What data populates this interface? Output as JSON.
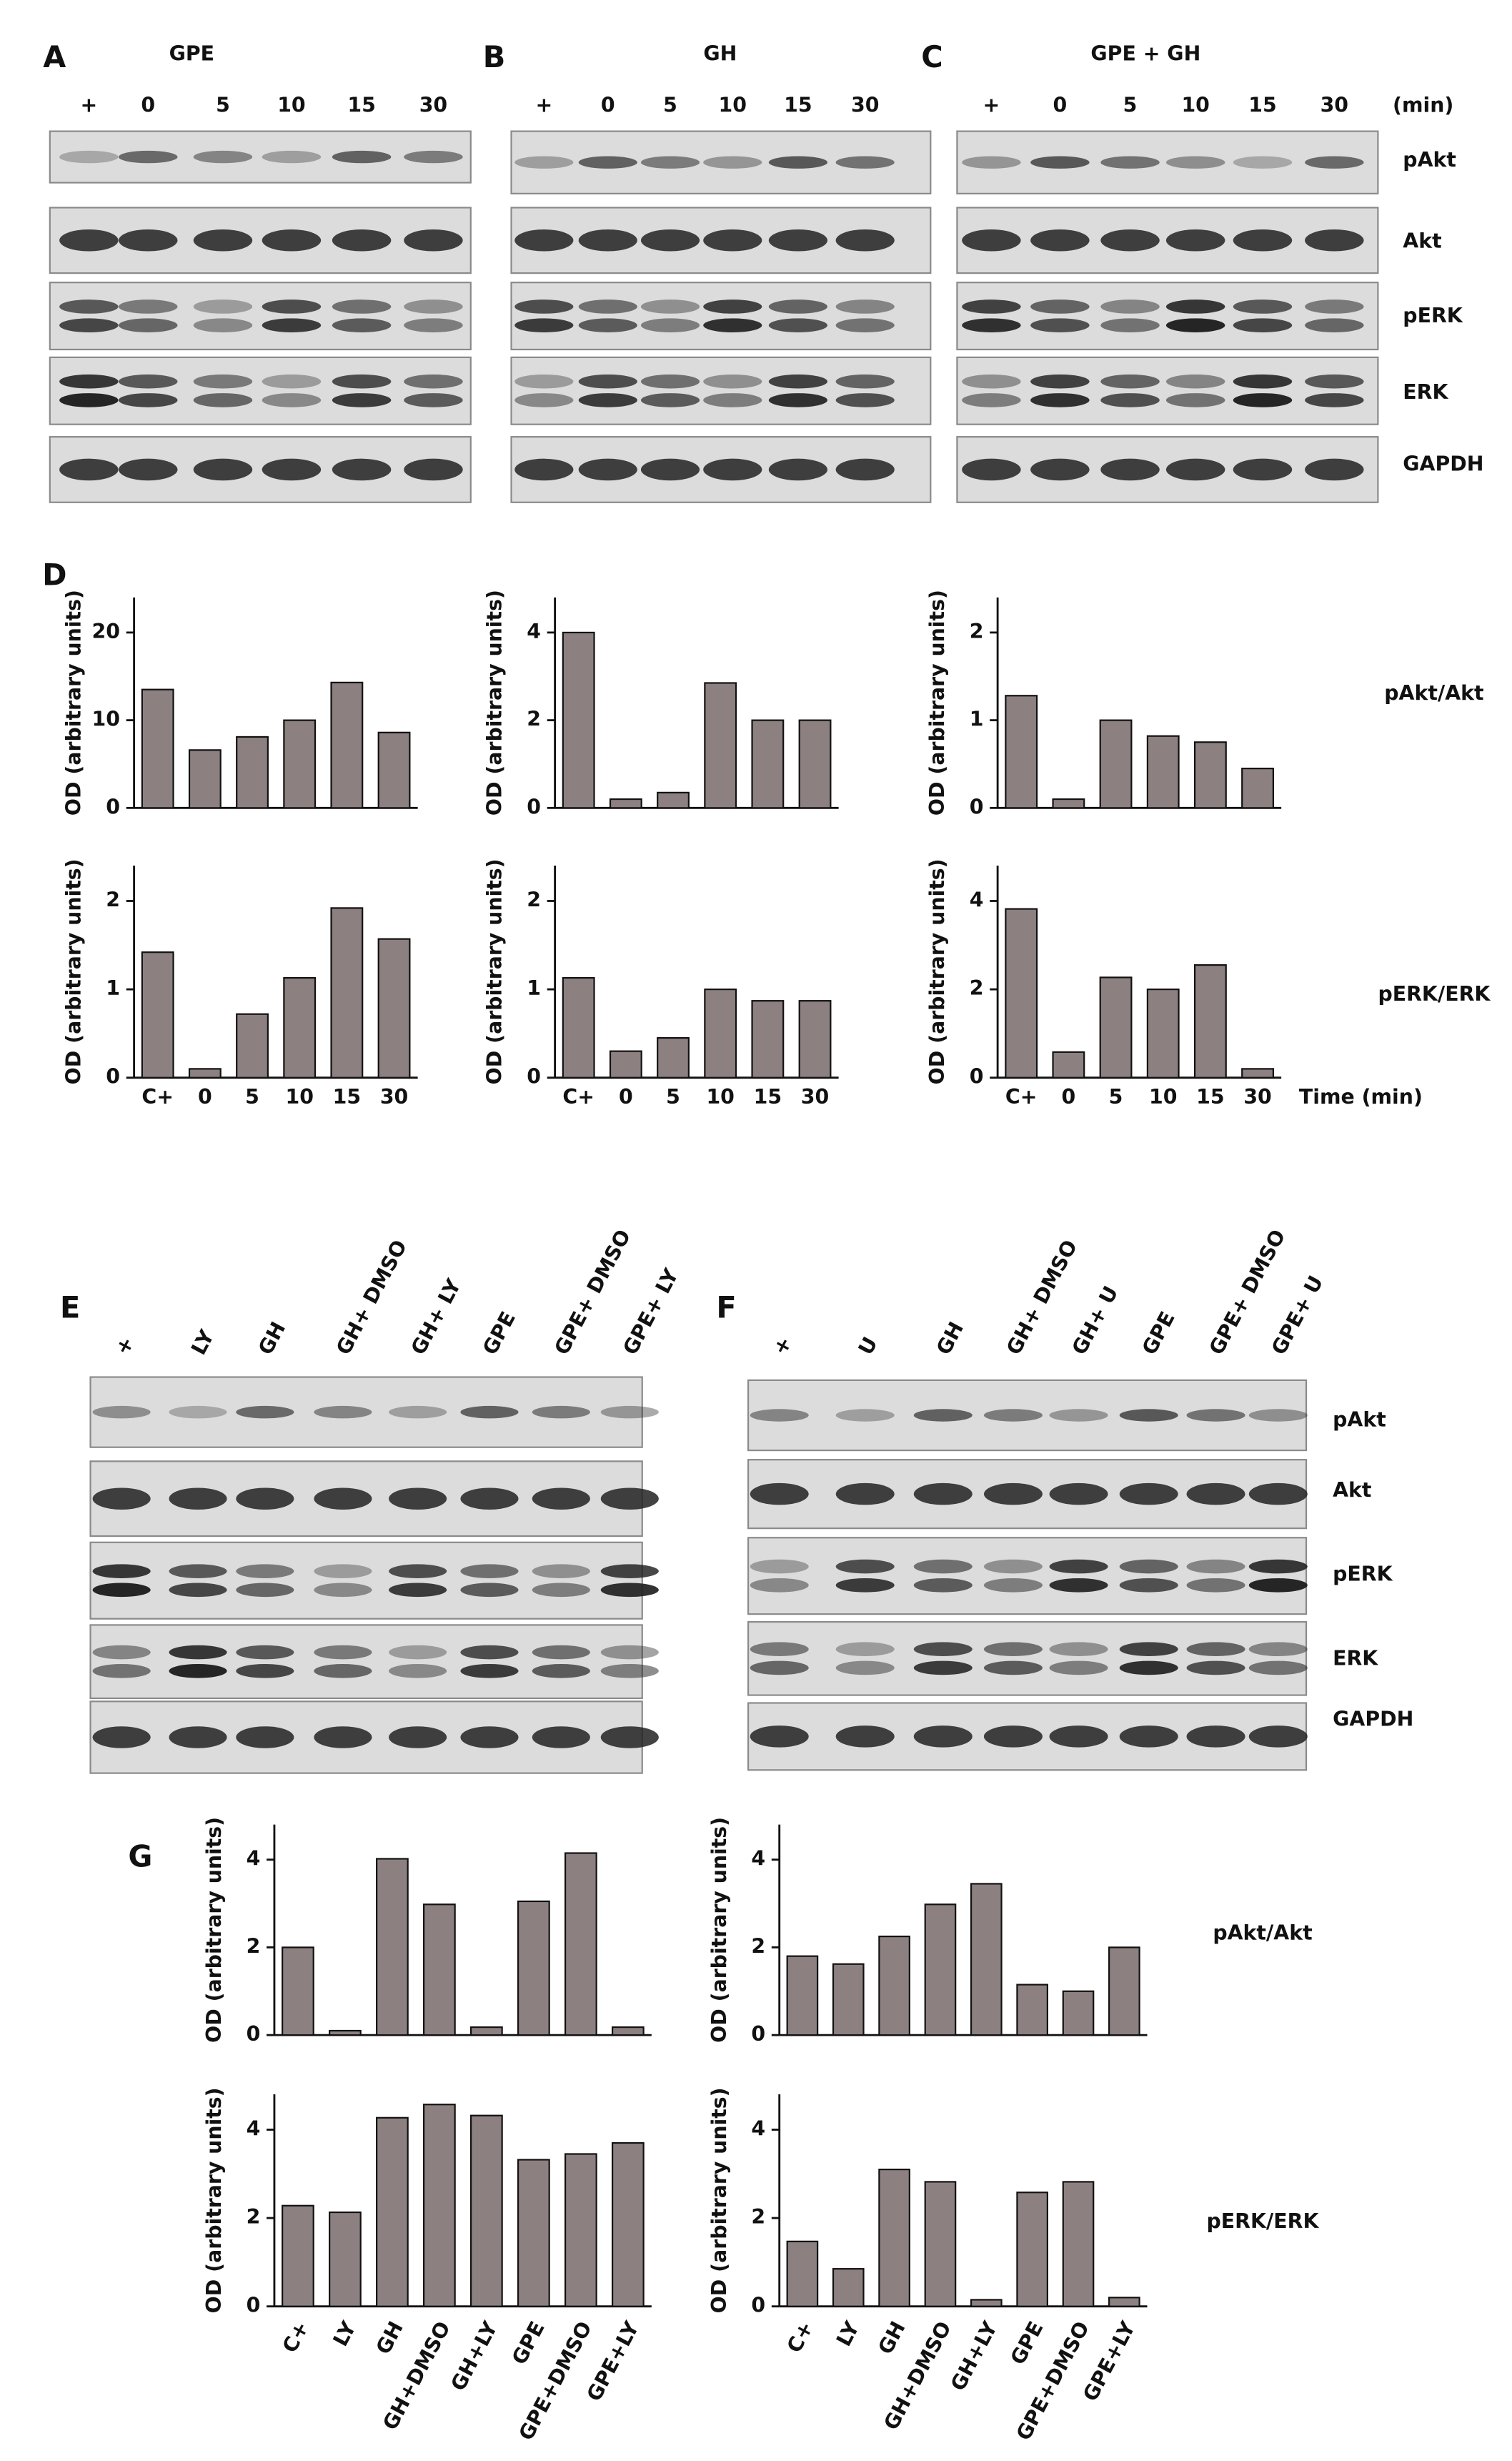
{
  "blot_panels": [
    {
      "label": "A",
      "title": "GPE",
      "lanes": [
        "+",
        "0",
        "5",
        "10",
        "15",
        "30"
      ]
    },
    {
      "label": "B",
      "title": "GH",
      "lanes": [
        "+",
        "0",
        "5",
        "10",
        "15",
        "30"
      ]
    },
    {
      "label": "C",
      "title": "GPE + GH",
      "lanes": [
        "+",
        "0",
        "5",
        "10",
        "15",
        "30"
      ],
      "unit": "(min)",
      "row_labels": [
        "pAkt",
        "Akt",
        "pERK",
        "ERK",
        "GAPDH"
      ]
    },
    {
      "label": "E",
      "lanes": [
        "+",
        "LY",
        "GH",
        "GH+ DMSO",
        "GH+ LY",
        "GPE",
        "GPE+ DMSO",
        "GPE+ LY"
      ]
    },
    {
      "label": "F",
      "lanes": [
        "+",
        "U",
        "GH",
        "GH+ DMSO",
        "GH+ U",
        "GPE",
        "GPE+ DMSO",
        "GPE+ U"
      ],
      "row_labels": [
        "pAkt",
        "Akt",
        "pERK",
        "ERK",
        "GAPDH"
      ]
    }
  ],
  "quant_panels": [
    {
      "label": "D",
      "row_labels": [
        "pAkt/Akt",
        "pERK/ERK"
      ]
    },
    {
      "label": "G",
      "row_labels": [
        "pAkt/Akt",
        "pERK/ERK"
      ]
    }
  ],
  "chart_data": [
    {
      "type": "bar",
      "y_label": "OD (arbitrary units)",
      "categories": [
        null,
        null,
        null,
        null,
        null,
        null
      ],
      "values": [
        13.5,
        6.6,
        8.1,
        10,
        14.3,
        8.6
      ],
      "ylim": [
        0,
        24
      ],
      "yticks": [
        0,
        10,
        20
      ],
      "color": "#8c8080"
    },
    {
      "type": "bar",
      "y_label": "OD (arbitrary units)",
      "categories": [
        null,
        null,
        null,
        null,
        null,
        null
      ],
      "values": [
        4.0,
        0.2,
        0.35,
        2.85,
        2.0,
        2.0
      ],
      "ylim": [
        0,
        4.8
      ],
      "yticks": [
        0,
        2,
        4
      ],
      "color": "#8c8080"
    },
    {
      "type": "bar",
      "y_label": "OD (arbitrary units)",
      "categories": [
        null,
        null,
        null,
        null,
        null,
        null
      ],
      "values": [
        1.28,
        0.1,
        1.0,
        0.82,
        0.75,
        0.45
      ],
      "ylim": [
        0,
        2.4
      ],
      "yticks": [
        0,
        1,
        2
      ],
      "color": "#8c8080"
    },
    {
      "type": "bar",
      "y_label": "OD (arbitrary units)",
      "categories": [
        "C+",
        "0",
        "5",
        "10",
        "15",
        "30"
      ],
      "values": [
        1.42,
        0.1,
        0.72,
        1.13,
        1.92,
        1.57
      ],
      "ylim": [
        0,
        2.4
      ],
      "yticks": [
        0,
        1,
        2
      ],
      "color": "#8c8080"
    },
    {
      "type": "bar",
      "y_label": "OD (arbitrary units)",
      "categories": [
        "C+",
        "0",
        "5",
        "10",
        "15",
        "30"
      ],
      "values": [
        1.13,
        0.3,
        0.45,
        1.0,
        0.87,
        0.87
      ],
      "ylim": [
        0,
        2.4
      ],
      "yticks": [
        0,
        1,
        2
      ],
      "color": "#8c8080"
    },
    {
      "type": "bar",
      "y_label": "OD (arbitrary units)",
      "x_label": "Time (min)",
      "categories": [
        "C+",
        "0",
        "5",
        "10",
        "15",
        "30"
      ],
      "values": [
        3.82,
        0.58,
        2.27,
        2.0,
        2.55,
        0.2
      ],
      "ylim": [
        0,
        4.8
      ],
      "yticks": [
        0,
        2,
        4
      ],
      "color": "#8c8080"
    },
    {
      "type": "bar",
      "y_label": "OD (arbitrary units)",
      "categories": [
        null,
        null,
        null,
        null,
        null,
        null,
        null,
        null
      ],
      "values": [
        2.0,
        0.1,
        4.02,
        2.98,
        0.18,
        3.05,
        4.15,
        0.18
      ],
      "ylim": [
        0,
        4.8
      ],
      "yticks": [
        0,
        2,
        4
      ],
      "color": "#8c8080"
    },
    {
      "type": "bar",
      "y_label": "OD (arbitrary units)",
      "categories": [
        null,
        null,
        null,
        null,
        null,
        null,
        null,
        null
      ],
      "values": [
        1.8,
        1.62,
        2.25,
        2.98,
        3.45,
        1.15,
        1.0,
        2.0
      ],
      "ylim": [
        0,
        4.8
      ],
      "yticks": [
        0,
        2,
        4
      ],
      "color": "#8c8080"
    },
    {
      "type": "bar",
      "y_label": "OD (arbitrary units)",
      "categories": [
        "C+",
        "LY",
        "GH",
        "GH+DMSO",
        "GH+LY",
        "GPE",
        "GPE+DMSO",
        "GPE+LY"
      ],
      "values": [
        2.28,
        2.13,
        4.27,
        4.57,
        4.32,
        3.32,
        3.45,
        3.7
      ],
      "ylim": [
        0,
        4.8
      ],
      "yticks": [
        0,
        2,
        4
      ],
      "color": "#8c8080"
    },
    {
      "type": "bar",
      "y_label": "OD (arbitrary units)",
      "categories": [
        "C+",
        "LY",
        "GH",
        "GH+DMSO",
        "GH+LY",
        "GPE",
        "GPE+DMSO",
        "GPE+LY"
      ],
      "values": [
        1.47,
        0.85,
        3.1,
        2.82,
        0.15,
        2.58,
        2.82,
        0.2
      ],
      "ylim": [
        0,
        4.8
      ],
      "yticks": [
        0,
        2,
        4
      ],
      "color": "#8c8080"
    }
  ]
}
